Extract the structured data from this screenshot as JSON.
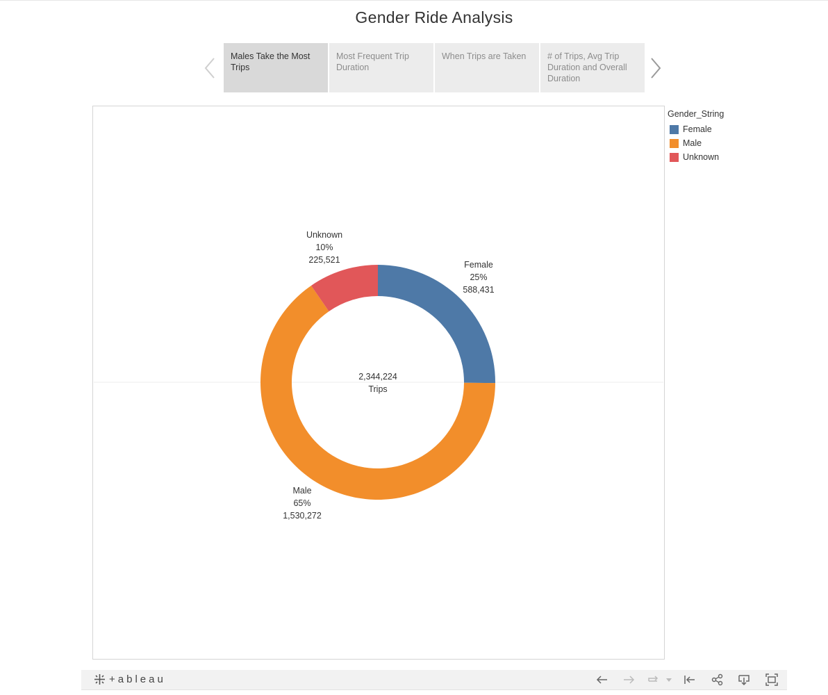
{
  "dashboard": {
    "title": "Gender Ride Analysis"
  },
  "story_points": [
    {
      "label": "Males Take the Most Trips",
      "active": true
    },
    {
      "label": "Most Frequent Trip Duration",
      "active": false
    },
    {
      "label": "When Trips are Taken",
      "active": false
    },
    {
      "label": "# of Trips, Avg Trip Duration and Overall Duration",
      "active": false
    }
  ],
  "legend": {
    "title": "Gender_String",
    "items": [
      {
        "label": "Female",
        "color": "#4e79a7"
      },
      {
        "label": "Male",
        "color": "#f28e2b"
      },
      {
        "label": "Unknown",
        "color": "#e15759"
      }
    ]
  },
  "chart_data": {
    "type": "pie",
    "variant": "donut",
    "title": "",
    "center_label": {
      "value": "2,344,224",
      "unit": "Trips"
    },
    "total": 2344224,
    "slices": [
      {
        "name": "Female",
        "value": 588431,
        "value_label": "588,431",
        "percent_label": "25%",
        "color": "#4e79a7"
      },
      {
        "name": "Male",
        "value": 1530272,
        "value_label": "1,530,272",
        "percent_label": "65%",
        "color": "#f28e2b"
      },
      {
        "name": "Unknown",
        "value": 225521,
        "value_label": "225,521",
        "percent_label": "10%",
        "color": "#e15759"
      }
    ],
    "legend": "right"
  },
  "footer": {
    "brand": "+ableau",
    "brand_icon": "tableau-logo-icon",
    "tools": [
      "undo-icon",
      "redo-icon",
      "revert-icon",
      "dropdown-caret-icon",
      "reset-icon",
      "share-icon",
      "download-icon",
      "fullscreen-icon"
    ]
  }
}
